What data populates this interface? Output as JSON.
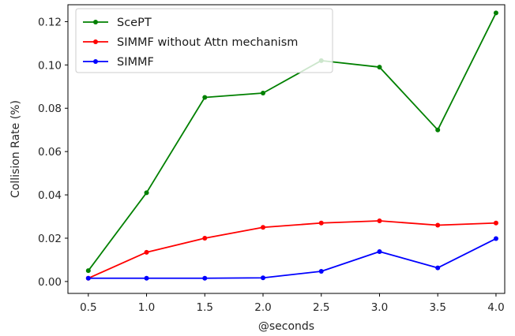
{
  "chart_data": {
    "type": "line",
    "title": "",
    "xlabel": "@seconds",
    "ylabel": "Collision Rate (%)",
    "x": [
      0.5,
      1.0,
      1.5,
      2.0,
      2.5,
      3.0,
      3.5,
      4.0
    ],
    "x_tick_labels": [
      "0.5",
      "1.0",
      "1.5",
      "2.0",
      "2.5",
      "3.0",
      "3.5",
      "4.0"
    ],
    "y_ticks": [
      0.0,
      0.02,
      0.04,
      0.06,
      0.08,
      0.1,
      0.12
    ],
    "y_tick_labels": [
      "0.00",
      "0.02",
      "0.04",
      "0.06",
      "0.08",
      "0.10",
      "0.12"
    ],
    "xlim": [
      0.325,
      4.075
    ],
    "ylim": [
      -0.0055,
      0.1278
    ],
    "grid": false,
    "legend_position": "top-left",
    "series": [
      {
        "name": "ScePT",
        "color": "#008000",
        "values": [
          0.005,
          0.041,
          0.085,
          0.087,
          0.102,
          0.099,
          0.07,
          0.124
        ]
      },
      {
        "name": "SIMMF without Attn mechanism",
        "color": "#ff0000",
        "values": [
          0.0015,
          0.0135,
          0.02,
          0.025,
          0.027,
          0.028,
          0.026,
          0.027
        ]
      },
      {
        "name": "SIMMF",
        "color": "#0000ff",
        "values": [
          0.0015,
          0.0015,
          0.0015,
          0.0017,
          0.0047,
          0.0138,
          0.0063,
          0.0198
        ]
      }
    ]
  }
}
